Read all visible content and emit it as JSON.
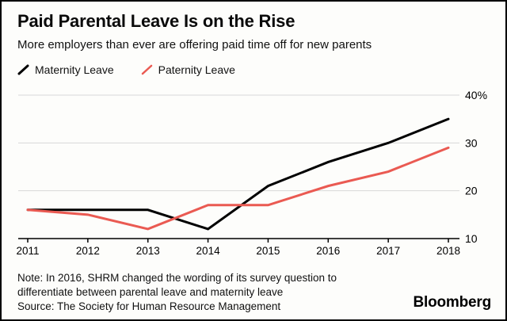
{
  "header": {
    "title": "Paid Parental Leave Is on the Rise",
    "subtitle": "More employers than ever are offering paid time off for new parents"
  },
  "legend": [
    {
      "label": "Maternity Leave",
      "color": "#000000"
    },
    {
      "label": "Paternity Leave",
      "color": "#ea5a52"
    }
  ],
  "chart_data": {
    "type": "line",
    "categories": [
      "2011",
      "2012",
      "2013",
      "2014",
      "2015",
      "2016",
      "2017",
      "2018"
    ],
    "series": [
      {
        "name": "Maternity Leave",
        "color": "#000000",
        "values": [
          16,
          16,
          16,
          12,
          21,
          26,
          30,
          35
        ]
      },
      {
        "name": "Paternity Leave",
        "color": "#ea5a52",
        "values": [
          16,
          15,
          12,
          17,
          17,
          21,
          24,
          29
        ]
      }
    ],
    "title": "Paid Parental Leave Is on the Rise",
    "xlabel": "",
    "ylabel": "",
    "ylim": [
      10,
      40
    ],
    "yticks": [
      10,
      20,
      30,
      40
    ],
    "ytick_labels": [
      "10",
      "20",
      "30",
      "40%"
    ],
    "grid": true,
    "legend_position": "top-left",
    "colors": {
      "gridline": "#d8d8d8",
      "axis": "#000000",
      "text": "#000000"
    }
  },
  "footer": {
    "note_line1": "Note: In 2016, SHRM changed the wording of its survey question to",
    "note_line2": "differentiate between parental leave and maternity leave",
    "source": "Source: The Society for Human Resource Management",
    "brand": "Bloomberg"
  }
}
